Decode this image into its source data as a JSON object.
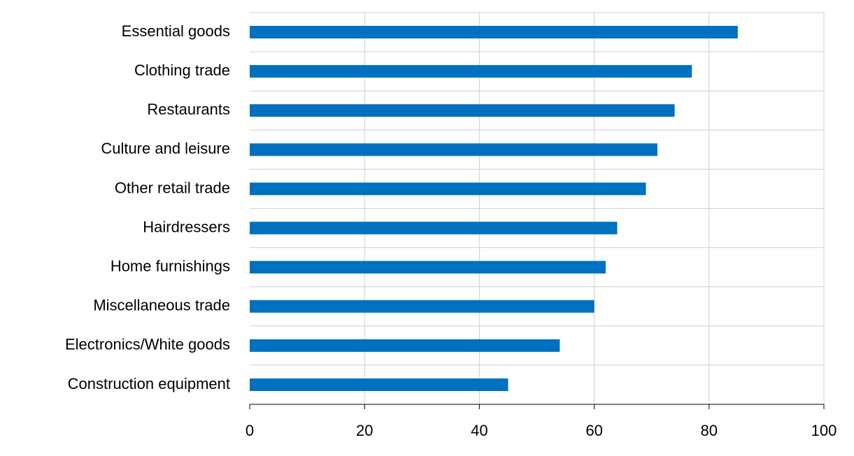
{
  "chart_data": {
    "type": "barh",
    "categories": [
      "Essential goods",
      "Clothing trade",
      "Restaurants",
      "Culture and leisure",
      "Other retail trade",
      "Hairdressers",
      "Home furnishings",
      "Miscellaneous trade",
      "Electronics/White goods",
      "Construction equipment"
    ],
    "values": [
      85,
      77,
      74,
      71,
      69,
      64,
      62,
      60,
      54,
      45
    ],
    "color": "#0070c0",
    "xlim": [
      0,
      100
    ],
    "xticks": [
      0,
      20,
      40,
      60,
      80,
      100
    ],
    "grid": true
  }
}
